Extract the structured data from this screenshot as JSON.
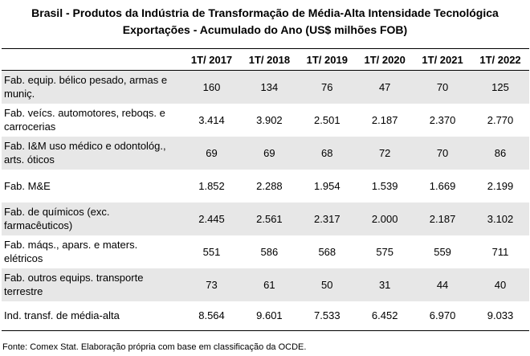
{
  "title_line1": "Brasil - Produtos da Indústria de Transformação de Média-Alta Intensidade Tecnológica",
  "title_line2": "Exportações - Acumulado do Ano (US$ milhões FOB)",
  "columns": [
    "",
    "1T/ 2017",
    "1T/ 2018",
    "1T/ 2019",
    "1T/ 2020",
    "1T/ 2021",
    "1T/ 2022"
  ],
  "rows": [
    {
      "label": "Fab. equip. bélico pesado, armas e muniç.",
      "values": [
        "160",
        "134",
        "76",
        "47",
        "70",
        "125"
      ]
    },
    {
      "label": "Fab. veícs. automotores, reboqs. e carrocerias",
      "values": [
        "3.414",
        "3.902",
        "2.501",
        "2.187",
        "2.370",
        "2.770"
      ]
    },
    {
      "label": "Fab. I&M uso médico e odontológ., arts. óticos",
      "values": [
        "69",
        "69",
        "68",
        "72",
        "70",
        "86"
      ]
    },
    {
      "label": "Fab. M&E",
      "values": [
        "1.852",
        "2.288",
        "1.954",
        "1.539",
        "1.669",
        "2.199"
      ]
    },
    {
      "label": "Fab. de químicos (exc. farmacêuticos)",
      "values": [
        "2.445",
        "2.561",
        "2.317",
        "2.000",
        "2.187",
        "3.102"
      ]
    },
    {
      "label": "Fab. máqs., apars. e maters. elétricos",
      "values": [
        "551",
        "586",
        "568",
        "575",
        "559",
        "711"
      ]
    },
    {
      "label": "Fab. outros equips. transporte terrestre",
      "values": [
        "73",
        "61",
        "50",
        "31",
        "44",
        "40"
      ]
    },
    {
      "label": "Ind. transf. de média-alta",
      "values": [
        "8.564",
        "9.601",
        "7.533",
        "6.452",
        "6.970",
        "9.033"
      ]
    }
  ],
  "source": "Fonte: Comex Stat. Elaboração própria com base em classificação da OCDE."
}
